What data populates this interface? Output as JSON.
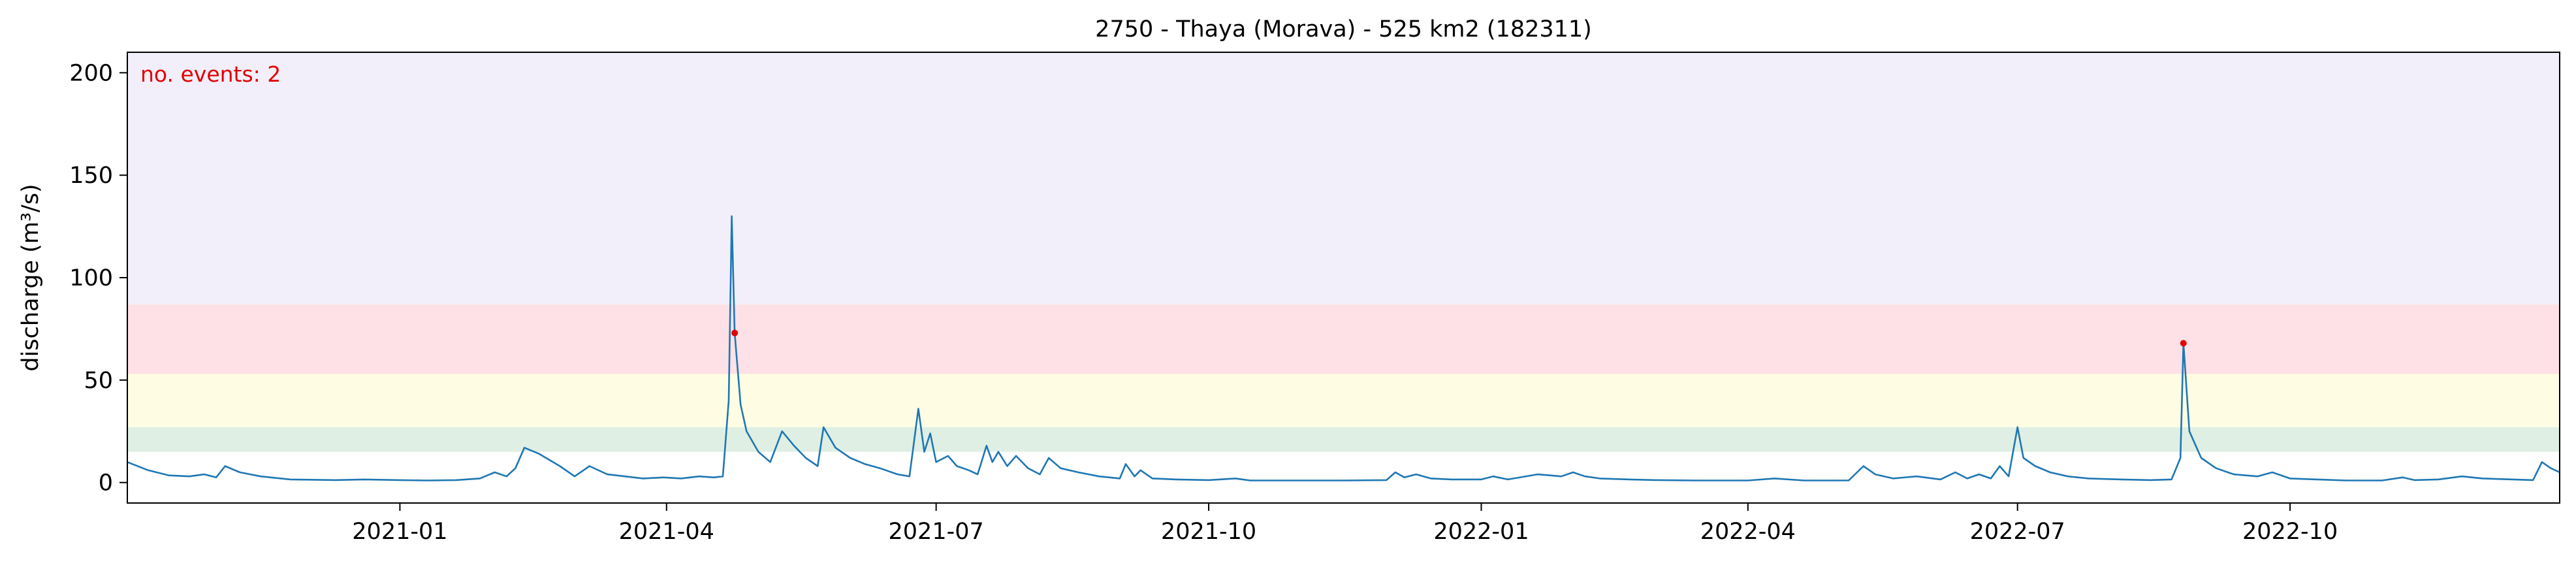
{
  "chart_data": {
    "type": "line",
    "title": "2750 - Thaya (Morava) - 525 km2 (182311)",
    "xlabel": "",
    "ylabel": "discharge (m³/s)",
    "x_range": [
      "2020-10-01",
      "2022-12-31"
    ],
    "ylim": [
      -10,
      210
    ],
    "grid": false,
    "annotation": {
      "text": "no. events: 2",
      "color": "#e00000"
    },
    "yticks": [
      0,
      50,
      100,
      150,
      200
    ],
    "xticks": [
      "2021-01",
      "2021-04",
      "2021-07",
      "2021-10",
      "2022-01",
      "2022-04",
      "2022-07",
      "2022-10"
    ],
    "xtick_dates": [
      "2021-01-01",
      "2021-04-01",
      "2021-07-01",
      "2021-10-01",
      "2022-01-01",
      "2022-04-01",
      "2022-07-01",
      "2022-10-01"
    ],
    "threshold_bands": [
      {
        "from": 15,
        "to": 27,
        "color": "#dfefe3"
      },
      {
        "from": 27,
        "to": 53,
        "color": "#fefde3"
      },
      {
        "from": 53,
        "to": 87,
        "color": "#fde1e6"
      },
      {
        "from": 87,
        "to": 210,
        "color": "#f2effa"
      }
    ],
    "series": [
      {
        "color": "#1f77b4",
        "points": [
          [
            "2020-10-01",
            10
          ],
          [
            "2020-10-08",
            6
          ],
          [
            "2020-10-15",
            3.5
          ],
          [
            "2020-10-22",
            3
          ],
          [
            "2020-10-27",
            4
          ],
          [
            "2020-10-31",
            2.5
          ],
          [
            "2020-11-03",
            8
          ],
          [
            "2020-11-08",
            5
          ],
          [
            "2020-11-15",
            3
          ],
          [
            "2020-11-25",
            1.5
          ],
          [
            "2020-12-10",
            1.2
          ],
          [
            "2020-12-20",
            1.5
          ],
          [
            "2021-01-01",
            1.2
          ],
          [
            "2021-01-10",
            1
          ],
          [
            "2021-01-20",
            1.2
          ],
          [
            "2021-01-28",
            2
          ],
          [
            "2021-02-02",
            5
          ],
          [
            "2021-02-06",
            3
          ],
          [
            "2021-02-09",
            7
          ],
          [
            "2021-02-12",
            17
          ],
          [
            "2021-02-17",
            14
          ],
          [
            "2021-02-24",
            8
          ],
          [
            "2021-03-01",
            3
          ],
          [
            "2021-03-06",
            8
          ],
          [
            "2021-03-12",
            4
          ],
          [
            "2021-03-18",
            3
          ],
          [
            "2021-03-24",
            2
          ],
          [
            "2021-03-31",
            2.5
          ],
          [
            "2021-04-06",
            2
          ],
          [
            "2021-04-12",
            3
          ],
          [
            "2021-04-17",
            2.5
          ],
          [
            "2021-04-20",
            3
          ],
          [
            "2021-04-22",
            40
          ],
          [
            "2021-04-23",
            130
          ],
          [
            "2021-04-24",
            73
          ],
          [
            "2021-04-26",
            38
          ],
          [
            "2021-04-28",
            25
          ],
          [
            "2021-05-02",
            15
          ],
          [
            "2021-05-06",
            10
          ],
          [
            "2021-05-10",
            25
          ],
          [
            "2021-05-14",
            18
          ],
          [
            "2021-05-18",
            12
          ],
          [
            "2021-05-22",
            8
          ],
          [
            "2021-05-24",
            27
          ],
          [
            "2021-05-28",
            17
          ],
          [
            "2021-06-02",
            12
          ],
          [
            "2021-06-07",
            9
          ],
          [
            "2021-06-12",
            7
          ],
          [
            "2021-06-18",
            4
          ],
          [
            "2021-06-22",
            3
          ],
          [
            "2021-06-25",
            36
          ],
          [
            "2021-06-27",
            15
          ],
          [
            "2021-06-29",
            24
          ],
          [
            "2021-07-01",
            10
          ],
          [
            "2021-07-05",
            13
          ],
          [
            "2021-07-08",
            8
          ],
          [
            "2021-07-12",
            6
          ],
          [
            "2021-07-15",
            4
          ],
          [
            "2021-07-18",
            18
          ],
          [
            "2021-07-20",
            10
          ],
          [
            "2021-07-22",
            15
          ],
          [
            "2021-07-25",
            8
          ],
          [
            "2021-07-28",
            13
          ],
          [
            "2021-08-01",
            7
          ],
          [
            "2021-08-05",
            4
          ],
          [
            "2021-08-08",
            12
          ],
          [
            "2021-08-12",
            7
          ],
          [
            "2021-08-18",
            5
          ],
          [
            "2021-08-25",
            3
          ],
          [
            "2021-09-01",
            2
          ],
          [
            "2021-09-03",
            9
          ],
          [
            "2021-09-06",
            3
          ],
          [
            "2021-09-08",
            6
          ],
          [
            "2021-09-12",
            2
          ],
          [
            "2021-09-20",
            1.5
          ],
          [
            "2021-10-01",
            1.2
          ],
          [
            "2021-10-10",
            2
          ],
          [
            "2021-10-15",
            1
          ],
          [
            "2021-11-01",
            1
          ],
          [
            "2021-11-15",
            1
          ],
          [
            "2021-11-30",
            1.2
          ],
          [
            "2021-12-03",
            5
          ],
          [
            "2021-12-06",
            2.5
          ],
          [
            "2021-12-10",
            4
          ],
          [
            "2021-12-15",
            2
          ],
          [
            "2021-12-22",
            1.5
          ],
          [
            "2022-01-01",
            1.5
          ],
          [
            "2022-01-05",
            3
          ],
          [
            "2022-01-10",
            1.5
          ],
          [
            "2022-01-20",
            4
          ],
          [
            "2022-01-28",
            3
          ],
          [
            "2022-02-01",
            5
          ],
          [
            "2022-02-05",
            3
          ],
          [
            "2022-02-10",
            2
          ],
          [
            "2022-02-20",
            1.5
          ],
          [
            "2022-03-01",
            1.2
          ],
          [
            "2022-03-15",
            1
          ],
          [
            "2022-04-01",
            1
          ],
          [
            "2022-04-10",
            2
          ],
          [
            "2022-04-20",
            1
          ],
          [
            "2022-05-05",
            1
          ],
          [
            "2022-05-10",
            8
          ],
          [
            "2022-05-14",
            4
          ],
          [
            "2022-05-20",
            2
          ],
          [
            "2022-05-28",
            3
          ],
          [
            "2022-06-05",
            1.5
          ],
          [
            "2022-06-10",
            5
          ],
          [
            "2022-06-14",
            2
          ],
          [
            "2022-06-18",
            4
          ],
          [
            "2022-06-22",
            2
          ],
          [
            "2022-06-25",
            8
          ],
          [
            "2022-06-28",
            3
          ],
          [
            "2022-07-01",
            27
          ],
          [
            "2022-07-03",
            12
          ],
          [
            "2022-07-07",
            8
          ],
          [
            "2022-07-12",
            5
          ],
          [
            "2022-07-18",
            3
          ],
          [
            "2022-07-25",
            2
          ],
          [
            "2022-08-05",
            1.5
          ],
          [
            "2022-08-15",
            1.2
          ],
          [
            "2022-08-22",
            1.5
          ],
          [
            "2022-08-25",
            12
          ],
          [
            "2022-08-26",
            68
          ],
          [
            "2022-08-28",
            25
          ],
          [
            "2022-09-01",
            12
          ],
          [
            "2022-09-06",
            7
          ],
          [
            "2022-09-12",
            4
          ],
          [
            "2022-09-20",
            3
          ],
          [
            "2022-09-25",
            5
          ],
          [
            "2022-10-01",
            2
          ],
          [
            "2022-10-10",
            1.5
          ],
          [
            "2022-10-20",
            1
          ],
          [
            "2022-11-01",
            1
          ],
          [
            "2022-11-08",
            2.5
          ],
          [
            "2022-11-12",
            1.2
          ],
          [
            "2022-11-20",
            1.5
          ],
          [
            "2022-11-28",
            3
          ],
          [
            "2022-12-05",
            2
          ],
          [
            "2022-12-15",
            1.5
          ],
          [
            "2022-12-22",
            1.2
          ],
          [
            "2022-12-25",
            10
          ],
          [
            "2022-12-28",
            7
          ],
          [
            "2022-12-31",
            5
          ]
        ]
      }
    ],
    "events": [
      {
        "date": "2021-04-24",
        "value": 73,
        "color": "#e00000"
      },
      {
        "date": "2022-08-26",
        "value": 68,
        "color": "#e00000"
      }
    ]
  }
}
